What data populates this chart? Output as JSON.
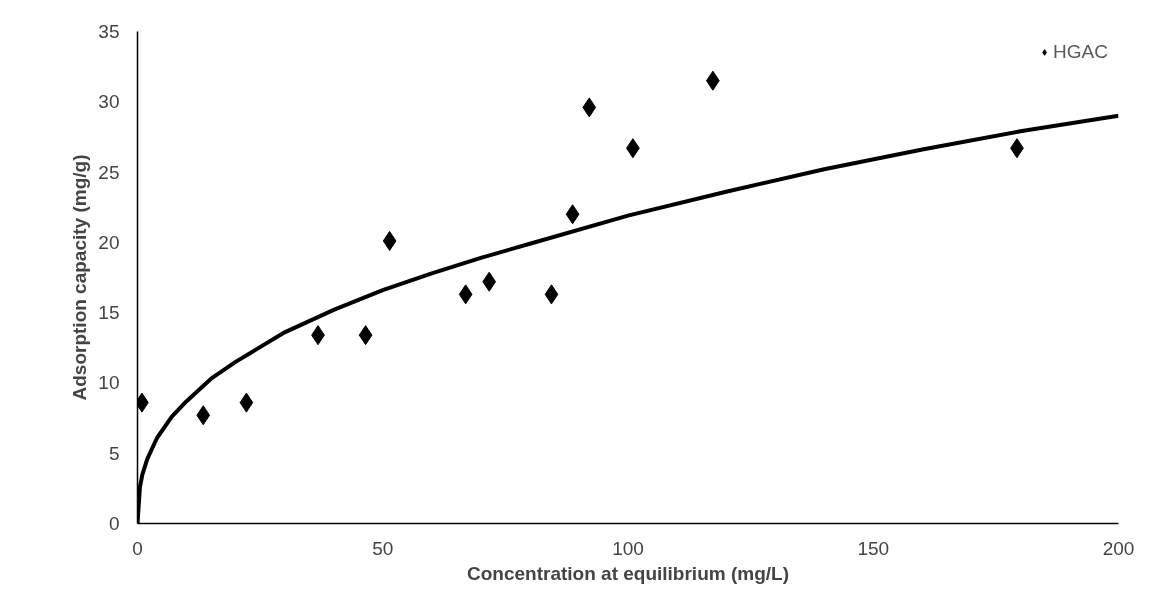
{
  "chart_data": {
    "type": "scatter",
    "xlabel": "Concentration at equilibrium (mg/L)",
    "ylabel": "Adsorption capacity (mg/g)",
    "xlim": [
      0,
      200
    ],
    "ylim": [
      0,
      35
    ],
    "xticks": [
      0,
      50,
      100,
      150,
      200
    ],
    "yticks": [
      0,
      5,
      10,
      15,
      20,
      25,
      30,
      35
    ],
    "grid": false,
    "legend": "top right",
    "marker": "diamond",
    "series": [
      {
        "name": "HGAC",
        "color": "#000000",
        "x": [
          0.9,
          13.4,
          22.2,
          36.8,
          46.5,
          51.4,
          66.9,
          71.7,
          84.4,
          88.7,
          92.1,
          101.0,
          117.3,
          179.3
        ],
        "values": [
          8.6,
          7.7,
          8.6,
          13.4,
          13.4,
          20.1,
          16.3,
          17.2,
          16.3,
          22.0,
          29.6,
          26.7,
          31.5,
          26.7
        ]
      },
      {
        "type": "line",
        "color": "#000000",
        "marker": "none",
        "line_style": "solid",
        "x": [
          0,
          0.5,
          1,
          2,
          4,
          7,
          10,
          15,
          20,
          30,
          40,
          50,
          60,
          70,
          80,
          100,
          120,
          140,
          160,
          180,
          200
        ],
        "values": [
          0,
          2.6,
          3.5,
          4.6,
          6.1,
          7.6,
          8.7,
          10.3,
          11.5,
          13.6,
          15.2,
          16.6,
          17.8,
          18.9,
          19.9,
          21.9,
          23.6,
          25.2,
          26.6,
          27.9,
          29.0
        ]
      }
    ]
  }
}
